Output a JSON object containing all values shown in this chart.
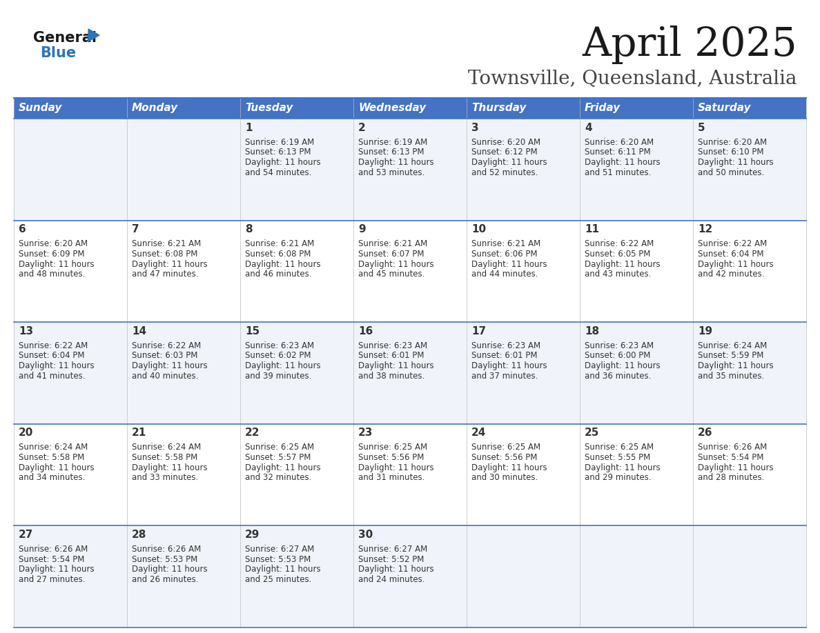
{
  "title": "April 2025",
  "subtitle": "Townsville, Queensland, Australia",
  "header_bg": "#4472C4",
  "header_text_color": "#FFFFFF",
  "cell_bg_light": "#F0F4FA",
  "cell_bg_white": "#FFFFFF",
  "cell_text_color": "#333333",
  "border_color": "#4472C4",
  "days_of_week": [
    "Sunday",
    "Monday",
    "Tuesday",
    "Wednesday",
    "Thursday",
    "Friday",
    "Saturday"
  ],
  "logo_general_color": "#1a1a1a",
  "logo_blue_color": "#2E75B6",
  "calendar_data": [
    [
      {
        "day": null,
        "sunrise": null,
        "sunset": null,
        "daylight": null
      },
      {
        "day": null,
        "sunrise": null,
        "sunset": null,
        "daylight": null
      },
      {
        "day": 1,
        "sunrise": "6:19 AM",
        "sunset": "6:13 PM",
        "daylight": "11 hours and 54 minutes."
      },
      {
        "day": 2,
        "sunrise": "6:19 AM",
        "sunset": "6:13 PM",
        "daylight": "11 hours and 53 minutes."
      },
      {
        "day": 3,
        "sunrise": "6:20 AM",
        "sunset": "6:12 PM",
        "daylight": "11 hours and 52 minutes."
      },
      {
        "day": 4,
        "sunrise": "6:20 AM",
        "sunset": "6:11 PM",
        "daylight": "11 hours and 51 minutes."
      },
      {
        "day": 5,
        "sunrise": "6:20 AM",
        "sunset": "6:10 PM",
        "daylight": "11 hours and 50 minutes."
      }
    ],
    [
      {
        "day": 6,
        "sunrise": "6:20 AM",
        "sunset": "6:09 PM",
        "daylight": "11 hours and 48 minutes."
      },
      {
        "day": 7,
        "sunrise": "6:21 AM",
        "sunset": "6:08 PM",
        "daylight": "11 hours and 47 minutes."
      },
      {
        "day": 8,
        "sunrise": "6:21 AM",
        "sunset": "6:08 PM",
        "daylight": "11 hours and 46 minutes."
      },
      {
        "day": 9,
        "sunrise": "6:21 AM",
        "sunset": "6:07 PM",
        "daylight": "11 hours and 45 minutes."
      },
      {
        "day": 10,
        "sunrise": "6:21 AM",
        "sunset": "6:06 PM",
        "daylight": "11 hours and 44 minutes."
      },
      {
        "day": 11,
        "sunrise": "6:22 AM",
        "sunset": "6:05 PM",
        "daylight": "11 hours and 43 minutes."
      },
      {
        "day": 12,
        "sunrise": "6:22 AM",
        "sunset": "6:04 PM",
        "daylight": "11 hours and 42 minutes."
      }
    ],
    [
      {
        "day": 13,
        "sunrise": "6:22 AM",
        "sunset": "6:04 PM",
        "daylight": "11 hours and 41 minutes."
      },
      {
        "day": 14,
        "sunrise": "6:22 AM",
        "sunset": "6:03 PM",
        "daylight": "11 hours and 40 minutes."
      },
      {
        "day": 15,
        "sunrise": "6:23 AM",
        "sunset": "6:02 PM",
        "daylight": "11 hours and 39 minutes."
      },
      {
        "day": 16,
        "sunrise": "6:23 AM",
        "sunset": "6:01 PM",
        "daylight": "11 hours and 38 minutes."
      },
      {
        "day": 17,
        "sunrise": "6:23 AM",
        "sunset": "6:01 PM",
        "daylight": "11 hours and 37 minutes."
      },
      {
        "day": 18,
        "sunrise": "6:23 AM",
        "sunset": "6:00 PM",
        "daylight": "11 hours and 36 minutes."
      },
      {
        "day": 19,
        "sunrise": "6:24 AM",
        "sunset": "5:59 PM",
        "daylight": "11 hours and 35 minutes."
      }
    ],
    [
      {
        "day": 20,
        "sunrise": "6:24 AM",
        "sunset": "5:58 PM",
        "daylight": "11 hours and 34 minutes."
      },
      {
        "day": 21,
        "sunrise": "6:24 AM",
        "sunset": "5:58 PM",
        "daylight": "11 hours and 33 minutes."
      },
      {
        "day": 22,
        "sunrise": "6:25 AM",
        "sunset": "5:57 PM",
        "daylight": "11 hours and 32 minutes."
      },
      {
        "day": 23,
        "sunrise": "6:25 AM",
        "sunset": "5:56 PM",
        "daylight": "11 hours and 31 minutes."
      },
      {
        "day": 24,
        "sunrise": "6:25 AM",
        "sunset": "5:56 PM",
        "daylight": "11 hours and 30 minutes."
      },
      {
        "day": 25,
        "sunrise": "6:25 AM",
        "sunset": "5:55 PM",
        "daylight": "11 hours and 29 minutes."
      },
      {
        "day": 26,
        "sunrise": "6:26 AM",
        "sunset": "5:54 PM",
        "daylight": "11 hours and 28 minutes."
      }
    ],
    [
      {
        "day": 27,
        "sunrise": "6:26 AM",
        "sunset": "5:54 PM",
        "daylight": "11 hours and 27 minutes."
      },
      {
        "day": 28,
        "sunrise": "6:26 AM",
        "sunset": "5:53 PM",
        "daylight": "11 hours and 26 minutes."
      },
      {
        "day": 29,
        "sunrise": "6:27 AM",
        "sunset": "5:53 PM",
        "daylight": "11 hours and 25 minutes."
      },
      {
        "day": 30,
        "sunrise": "6:27 AM",
        "sunset": "5:52 PM",
        "daylight": "11 hours and 24 minutes."
      },
      {
        "day": null,
        "sunrise": null,
        "sunset": null,
        "daylight": null
      },
      {
        "day": null,
        "sunrise": null,
        "sunset": null,
        "daylight": null
      },
      {
        "day": null,
        "sunrise": null,
        "sunset": null,
        "daylight": null
      }
    ]
  ]
}
